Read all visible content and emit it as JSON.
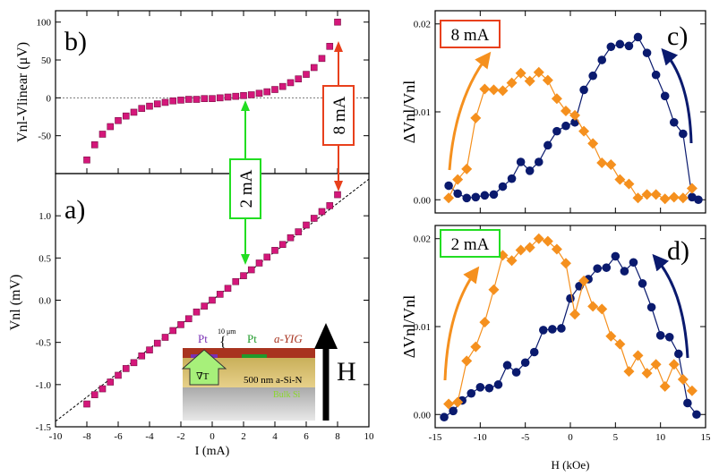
{
  "colors": {
    "magenta": "#d4177a",
    "navy": "#0a1a6e",
    "orange": "#f5901e",
    "green": "#22dd22",
    "red": "#e8401c",
    "black": "#000000"
  },
  "chart_data": [
    {
      "id": "b",
      "type": "scatter",
      "panel_label": "b)",
      "ylabel": "Vnl-Vlinear (μV)",
      "xlim": [
        -10,
        10
      ],
      "ylim": [
        -100,
        115
      ],
      "yticks": [
        -50,
        0,
        50,
        100
      ],
      "reference_line": 0,
      "series": [
        {
          "name": "Vnl-Vlinear",
          "color": "#d4177a",
          "x": [
            -8,
            -7.5,
            -7,
            -6.5,
            -6,
            -5.5,
            -5,
            -4.5,
            -4,
            -3.5,
            -3,
            -2.5,
            -2,
            -1.5,
            -1,
            -0.5,
            0,
            0.5,
            1,
            1.5,
            2,
            2.5,
            3,
            3.5,
            4,
            4.5,
            5,
            5.5,
            6,
            6.5,
            7,
            7.5,
            8
          ],
          "y": [
            -82,
            -62,
            -48,
            -38,
            -30,
            -24,
            -19,
            -14,
            -11,
            -8,
            -6,
            -4,
            -3,
            -2,
            -2,
            -1,
            -1,
            0,
            1,
            2,
            3,
            4,
            6,
            8,
            11,
            15,
            20,
            25,
            31,
            40,
            52,
            68,
            100
          ]
        }
      ]
    },
    {
      "id": "a",
      "type": "scatter",
      "panel_label": "a)",
      "xlabel": "I (mA)",
      "ylabel": "Vnl (mV)",
      "xlim": [
        -10,
        10
      ],
      "ylim": [
        -1.5,
        1.5
      ],
      "xticks": [
        -10,
        -8,
        -6,
        -4,
        -2,
        0,
        2,
        4,
        6,
        8,
        10
      ],
      "yticks": [
        -1.5,
        -1.0,
        -0.5,
        0.0,
        0.5,
        1.0
      ],
      "linear_fit_slope": 0.1435,
      "series": [
        {
          "name": "Vnl",
          "color": "#d4177a",
          "x": [
            -8,
            -7.5,
            -7,
            -6.5,
            -6,
            -5.5,
            -5,
            -4.5,
            -4,
            -3.5,
            -3,
            -2.5,
            -2,
            -1.5,
            -1,
            -0.5,
            0,
            0.5,
            1,
            1.5,
            2,
            2.5,
            3,
            3.5,
            4,
            4.5,
            5,
            5.5,
            6,
            6.5,
            7,
            7.5,
            8
          ],
          "y": [
            -1.23,
            -1.12,
            -1.05,
            -0.97,
            -0.89,
            -0.81,
            -0.74,
            -0.66,
            -0.59,
            -0.51,
            -0.44,
            -0.36,
            -0.29,
            -0.22,
            -0.14,
            -0.07,
            0.0,
            0.07,
            0.14,
            0.22,
            0.29,
            0.36,
            0.44,
            0.51,
            0.59,
            0.66,
            0.74,
            0.81,
            0.89,
            0.97,
            1.05,
            1.12,
            1.25
          ]
        }
      ]
    },
    {
      "id": "c",
      "type": "line",
      "panel_label": "c)",
      "current_label": "8 mA",
      "ylabel": "ΔVnl/Vnl",
      "xlim": [
        -15,
        15
      ],
      "ylim": [
        -0.0015,
        0.0215
      ],
      "yticks": [
        0.0,
        0.01,
        0.02
      ],
      "series": [
        {
          "name": "navy",
          "color": "#0a1a6e",
          "marker": "circle",
          "x": [
            -13.5,
            -12.5,
            -11.5,
            -10.5,
            -9.5,
            -8.5,
            -7.5,
            -6.5,
            -5.5,
            -4.5,
            -3.5,
            -2.5,
            -1.5,
            -0.5,
            0.5,
            1.5,
            2.5,
            3.5,
            4.5,
            5.5,
            6.5,
            7.5,
            8.5,
            9.5,
            10.5,
            11.5,
            12.5,
            13.5,
            14.2
          ],
          "y": [
            0.0016,
            0.0007,
            0.0002,
            0.0003,
            0.0005,
            0.0006,
            0.0015,
            0.0024,
            0.0043,
            0.0033,
            0.0043,
            0.0062,
            0.0078,
            0.0084,
            0.0088,
            0.0125,
            0.0141,
            0.0159,
            0.0174,
            0.0177,
            0.0175,
            0.0185,
            0.0167,
            0.0142,
            0.0118,
            0.0088,
            0.0075,
            0.0003,
            0.0
          ]
        },
        {
          "name": "orange",
          "color": "#f5901e",
          "marker": "diamond",
          "x": [
            -13.5,
            -12.5,
            -11.5,
            -10.5,
            -9.5,
            -8.5,
            -7.5,
            -6.5,
            -5.5,
            -4.5,
            -3.5,
            -2.5,
            -1.5,
            -0.5,
            0.5,
            1.5,
            2.5,
            3.5,
            4.5,
            5.5,
            6.5,
            7.5,
            8.5,
            9.5,
            10.5,
            11.5,
            12.5,
            13.5
          ],
          "y": [
            0.0002,
            0.0023,
            0.0035,
            0.0093,
            0.0126,
            0.0125,
            0.0124,
            0.0133,
            0.0144,
            0.0135,
            0.0145,
            0.0136,
            0.0115,
            0.0101,
            0.0096,
            0.0078,
            0.0064,
            0.0042,
            0.004,
            0.0023,
            0.0018,
            0.0002,
            0.0006,
            0.0006,
            0.0001,
            0.0003,
            0.0002,
            0.0013
          ]
        }
      ]
    },
    {
      "id": "d",
      "type": "line",
      "panel_label": "d)",
      "current_label": "2 mA",
      "xlabel": "H (kOe)",
      "ylabel": "ΔVnl/Vnl",
      "xlim": [
        -15,
        15
      ],
      "ylim": [
        -0.0015,
        0.0215
      ],
      "xticks": [
        -15,
        -10,
        -5,
        0,
        5,
        10,
        15
      ],
      "yticks": [
        0.0,
        0.01,
        0.02
      ],
      "series": [
        {
          "name": "navy",
          "color": "#0a1a6e",
          "marker": "circle",
          "x": [
            -14,
            -13,
            -12,
            -11,
            -10,
            -9,
            -8,
            -7,
            -6,
            -5,
            -4,
            -3,
            -2,
            -1,
            0,
            1,
            2,
            3,
            4,
            5,
            6,
            7,
            8,
            9,
            10,
            11,
            12,
            13,
            14
          ],
          "y": [
            -0.0003,
            0.0004,
            0.0016,
            0.0024,
            0.0031,
            0.003,
            0.0034,
            0.0056,
            0.0048,
            0.0059,
            0.0071,
            0.0096,
            0.0097,
            0.0098,
            0.0132,
            0.0146,
            0.0154,
            0.0166,
            0.0167,
            0.018,
            0.0163,
            0.0173,
            0.0149,
            0.0122,
            0.009,
            0.0088,
            0.0069,
            0.0013,
            0.0
          ]
        },
        {
          "name": "orange",
          "color": "#f5901e",
          "marker": "diamond",
          "x": [
            -13.5,
            -12.5,
            -11.5,
            -10.5,
            -9.5,
            -8.5,
            -7.5,
            -6.5,
            -5.5,
            -4.5,
            -3.5,
            -2.5,
            -1.5,
            -0.5,
            0.5,
            1.5,
            2.5,
            3.5,
            4.5,
            5.5,
            6.5,
            7.5,
            8.5,
            9.5,
            10.5,
            11.5,
            12.5,
            13.5
          ],
          "y": [
            0.0012,
            0.0014,
            0.0061,
            0.0077,
            0.0105,
            0.0142,
            0.0181,
            0.0175,
            0.0187,
            0.019,
            0.02,
            0.0197,
            0.0188,
            0.0172,
            0.0114,
            0.0152,
            0.0123,
            0.012,
            0.0089,
            0.008,
            0.0049,
            0.0067,
            0.0047,
            0.0057,
            0.0032,
            0.0057,
            0.004,
            0.0027
          ]
        }
      ]
    }
  ],
  "annotations": {
    "green_box": "2 mA",
    "red_box": "8 mA",
    "field_label": "H"
  },
  "inset": {
    "pt_left": "Pt",
    "pt_right": "Pt",
    "spacing": "10 μm",
    "yig": "a-YIG",
    "sin": "500 nm a-Si-N",
    "bulk": "Bulk Si",
    "grad": "∇T"
  }
}
